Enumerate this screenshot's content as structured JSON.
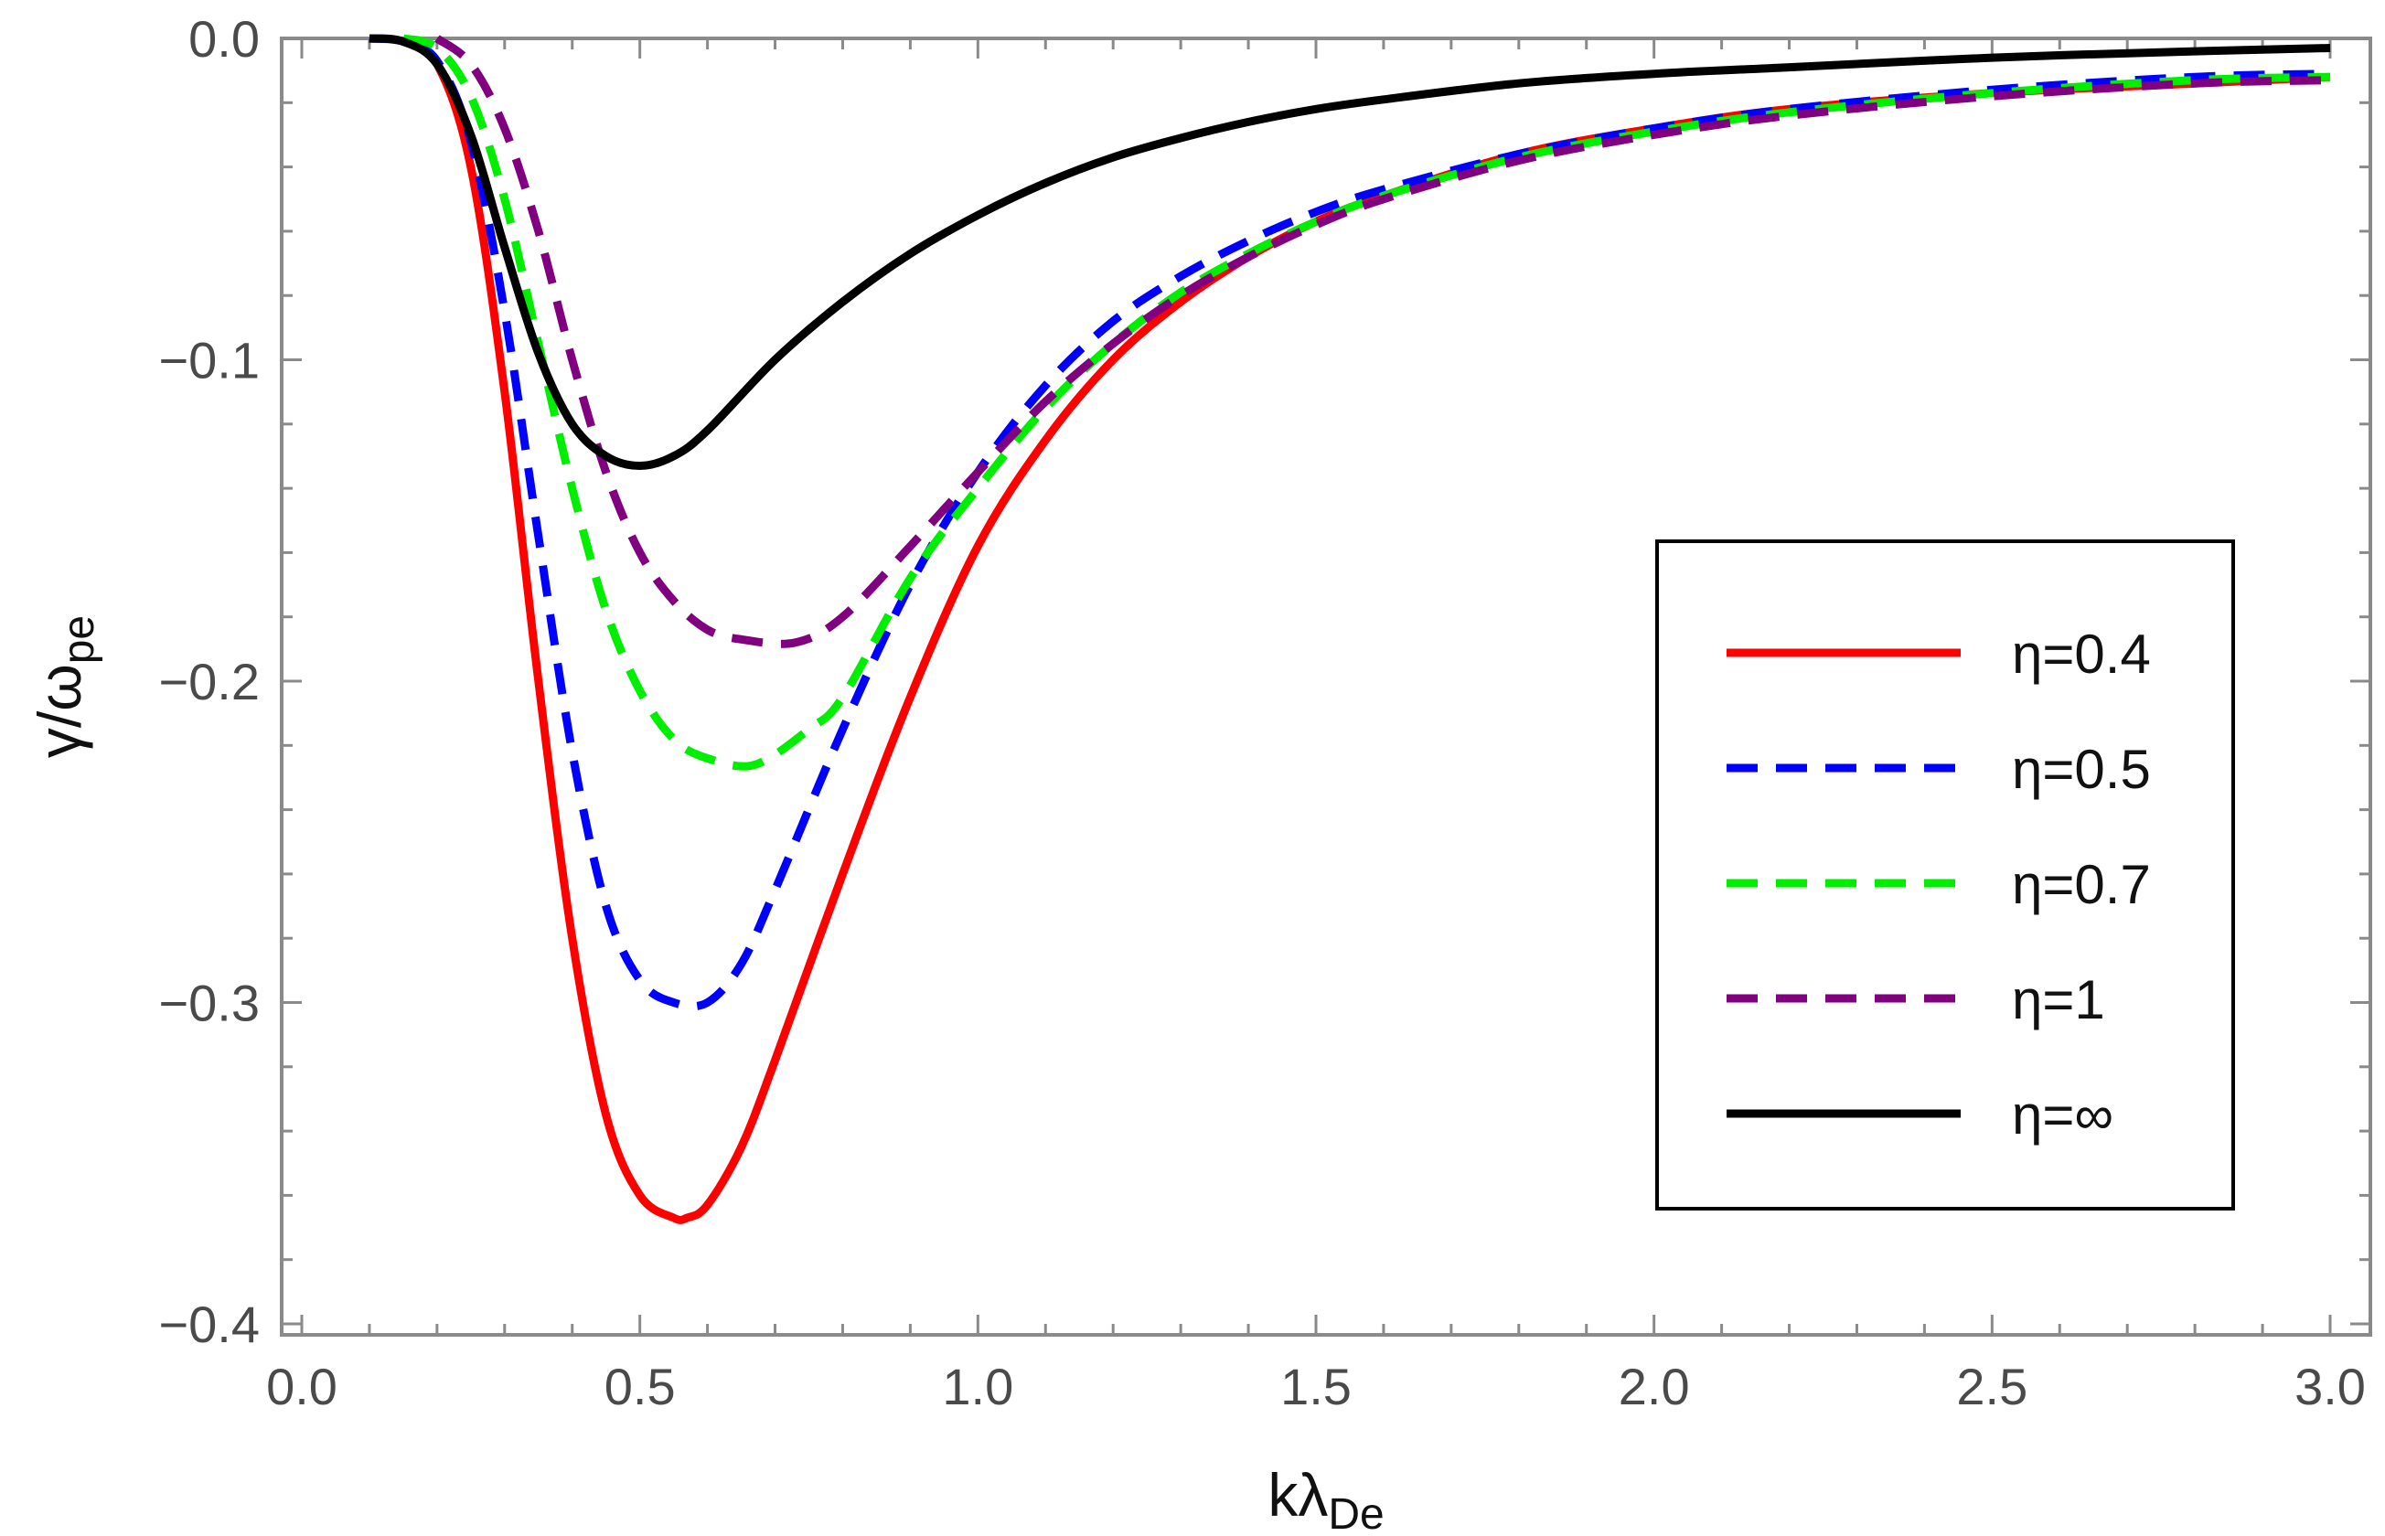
{
  "chart_data": {
    "type": "line",
    "title": "",
    "xlabel": {
      "main": "kλ",
      "sub": "De"
    },
    "ylabel": {
      "main": "γ/ω",
      "sub": "pe"
    },
    "xlim": [
      0.0,
      3.0
    ],
    "ylim": [
      -0.4,
      0.0
    ],
    "xticks": [
      0.0,
      0.5,
      1.0,
      1.5,
      2.0,
      2.5,
      3.0
    ],
    "xtick_labels": [
      "0.0",
      "0.5",
      "1.0",
      "1.5",
      "2.0",
      "2.5",
      "3.0"
    ],
    "yticks": [
      0.0,
      -0.1,
      -0.2,
      -0.3,
      -0.4
    ],
    "ytick_labels": [
      "0.0",
      "−0.1",
      "−0.2",
      "−0.3",
      "−0.4"
    ],
    "grid": false,
    "legend_position": "right",
    "series": [
      {
        "name": "η=0.4",
        "color": "#ff0000",
        "style": "solid",
        "x": [
          0.1,
          0.15,
          0.2,
          0.25,
          0.3,
          0.35,
          0.4,
          0.45,
          0.5,
          0.55,
          0.57,
          0.6,
          0.65,
          0.7,
          0.8,
          0.9,
          1.0,
          1.1,
          1.2,
          1.3,
          1.4,
          1.5,
          1.6,
          1.8,
          2.0,
          2.2,
          2.5,
          2.8,
          3.0
        ],
        "values": [
          0.0,
          -0.001,
          -0.008,
          -0.04,
          -0.11,
          -0.2,
          -0.28,
          -0.335,
          -0.36,
          -0.367,
          -0.367,
          -0.363,
          -0.345,
          -0.318,
          -0.26,
          -0.205,
          -0.158,
          -0.125,
          -0.1,
          -0.082,
          -0.068,
          -0.057,
          -0.049,
          -0.036,
          -0.028,
          -0.022,
          -0.017,
          -0.014,
          -0.012
        ]
      },
      {
        "name": "η=0.5",
        "color": "#0000ff",
        "style": "dashed",
        "x": [
          0.1,
          0.15,
          0.2,
          0.25,
          0.3,
          0.35,
          0.4,
          0.45,
          0.5,
          0.55,
          0.6,
          0.65,
          0.7,
          0.8,
          0.9,
          1.0,
          1.1,
          1.2,
          1.3,
          1.4,
          1.5,
          1.6,
          1.8,
          2.0,
          2.2,
          2.5,
          2.8,
          3.0
        ],
        "values": [
          0.0,
          -0.001,
          -0.007,
          -0.032,
          -0.085,
          -0.155,
          -0.222,
          -0.27,
          -0.293,
          -0.3,
          -0.3,
          -0.288,
          -0.265,
          -0.215,
          -0.17,
          -0.135,
          -0.108,
          -0.088,
          -0.074,
          -0.063,
          -0.054,
          -0.047,
          -0.036,
          -0.028,
          -0.022,
          -0.016,
          -0.012,
          -0.011
        ]
      },
      {
        "name": "η=0.7",
        "color": "#00ee00",
        "style": "dashed",
        "x": [
          0.15,
          0.2,
          0.25,
          0.3,
          0.35,
          0.4,
          0.45,
          0.5,
          0.55,
          0.6,
          0.67,
          0.75,
          0.8,
          0.9,
          1.0,
          1.1,
          1.2,
          1.3,
          1.4,
          1.5,
          1.6,
          1.8,
          2.0,
          2.2,
          2.5,
          2.8,
          3.0
        ],
        "values": [
          0.0,
          -0.003,
          -0.018,
          -0.05,
          -0.095,
          -0.14,
          -0.178,
          -0.203,
          -0.218,
          -0.224,
          -0.226,
          -0.215,
          -0.205,
          -0.168,
          -0.14,
          -0.115,
          -0.095,
          -0.079,
          -0.067,
          -0.057,
          -0.049,
          -0.037,
          -0.029,
          -0.023,
          -0.017,
          -0.013,
          -0.012
        ]
      },
      {
        "name": "η=1",
        "color": "#800080",
        "style": "dashed",
        "x": [
          0.2,
          0.25,
          0.3,
          0.35,
          0.4,
          0.45,
          0.5,
          0.55,
          0.6,
          0.65,
          0.73,
          0.8,
          0.9,
          1.0,
          1.1,
          1.2,
          1.3,
          1.4,
          1.5,
          1.6,
          1.8,
          2.0,
          2.2,
          2.5,
          2.8,
          3.0
        ],
        "values": [
          0.0,
          -0.008,
          -0.028,
          -0.06,
          -0.1,
          -0.135,
          -0.16,
          -0.175,
          -0.184,
          -0.187,
          -0.188,
          -0.18,
          -0.158,
          -0.135,
          -0.113,
          -0.095,
          -0.08,
          -0.068,
          -0.058,
          -0.05,
          -0.038,
          -0.03,
          -0.024,
          -0.018,
          -0.014,
          -0.013
        ]
      },
      {
        "name": "η=∞",
        "color": "#000000",
        "style": "solid",
        "x": [
          0.1,
          0.15,
          0.2,
          0.25,
          0.3,
          0.35,
          0.4,
          0.45,
          0.5,
          0.55,
          0.6,
          0.7,
          0.8,
          0.9,
          1.0,
          1.1,
          1.2,
          1.3,
          1.4,
          1.5,
          1.6,
          1.8,
          2.0,
          2.2,
          2.5,
          2.8,
          3.0
        ],
        "values": [
          0.0,
          -0.001,
          -0.008,
          -0.03,
          -0.065,
          -0.098,
          -0.12,
          -0.13,
          -0.133,
          -0.13,
          -0.122,
          -0.1,
          -0.082,
          -0.067,
          -0.055,
          -0.045,
          -0.037,
          -0.031,
          -0.026,
          -0.022,
          -0.019,
          -0.014,
          -0.011,
          -0.009,
          -0.006,
          -0.004,
          -0.003
        ]
      }
    ]
  }
}
